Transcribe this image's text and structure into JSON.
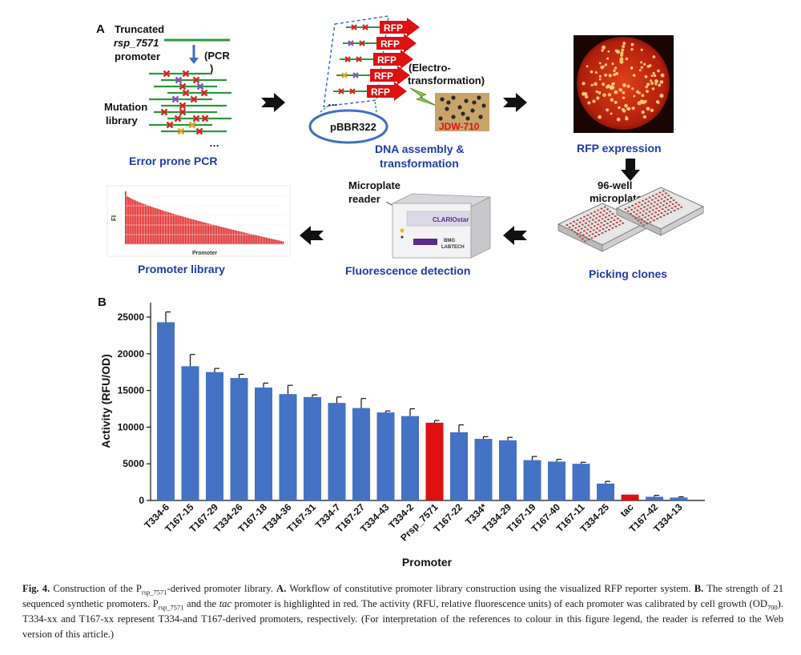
{
  "panel_a": {
    "label": "A",
    "truncated": "Truncated",
    "promoter_name": "rsp_7571",
    "promoter": "promoter",
    "pcr_label": "(PCR",
    "pcr_paren": ")",
    "mutation": "Mutation",
    "library": "library",
    "dots": "…",
    "dots2": "…",
    "step1": "Error prone PCR",
    "rfp": "RFP",
    "electro1": "(Electro-",
    "electro2": "transformation)",
    "plasmid": "pBBR322",
    "strain": "JDW-710",
    "step2a": "DNA assembly &",
    "step2b": "transformation",
    "step3": "RFP expression",
    "well1": "96-well",
    "well2": "microplate",
    "step4": "Picking clones",
    "reader1": "Microplate",
    "reader2": "reader",
    "instrument": "CLARIOstar",
    "bmg": "BMG",
    "labtech": "LABTECH",
    "step5": "Fluorescence detection",
    "fi": "FI",
    "mini_x": "Promoter",
    "step6": "Promoter library"
  },
  "panel_b": {
    "label": "B"
  },
  "chart_data": {
    "type": "bar",
    "xlabel": "Promoter",
    "ylabel": "Activity (RFU/OD)",
    "ylim": [
      0,
      27000
    ],
    "yticks": [
      0,
      5000,
      10000,
      15000,
      20000,
      25000
    ],
    "categories": [
      "T334-6",
      "T167-15",
      "T167-29",
      "T334-26",
      "T167-18",
      "T334-36",
      "T167-31",
      "T334-7",
      "T167-27",
      "T334-43",
      "T334-2",
      "Prsp_7571",
      "T167-22",
      "T334*",
      "T334-29",
      "T167-19",
      "T167-40",
      "T167-11",
      "T334-25",
      "tac",
      "T167-42",
      "T334-13"
    ],
    "values": [
      24300,
      18300,
      17500,
      16700,
      15400,
      14500,
      14100,
      13300,
      12600,
      12000,
      11500,
      10600,
      9300,
      8400,
      8200,
      5500,
      5300,
      5000,
      2300,
      800,
      500,
      400
    ],
    "errors": [
      1400,
      1600,
      500,
      500,
      600,
      1200,
      300,
      800,
      1300,
      200,
      1000,
      300,
      1000,
      300,
      400,
      500,
      300,
      200,
      300,
      0,
      200,
      100
    ],
    "highlight": [
      "#dd1111"
    ],
    "bar_color": "#4472c4",
    "highlighted_categories": [
      "Prsp_7571",
      "tac"
    ]
  },
  "caption": {
    "fig": "Fig. 4.",
    "t1": "Construction of the P",
    "sub1": "rsp_7571",
    "t2": "-derived promoter library.",
    "a": "A.",
    "t3": "Workflow of constitutive promoter library construction using the visualized RFP reporter system.",
    "b": "B.",
    "t4": "The strength of 21 sequenced synthetic promoters. P",
    "sub2": "rsp_7571",
    "t5": "and the",
    "tac": "tac",
    "t6": "promoter is highlighted in red. The activity (RFU, relative fluorescence units) of each promoter was calibrated by cell growth (OD",
    "sub3": "700",
    "t7": "). T334-xx and T167-xx represent T334-and T167-derived promoters, respectively. (For interpretation of the references to colour in this figure legend, the reader is referred to the Web version of this article.)"
  }
}
